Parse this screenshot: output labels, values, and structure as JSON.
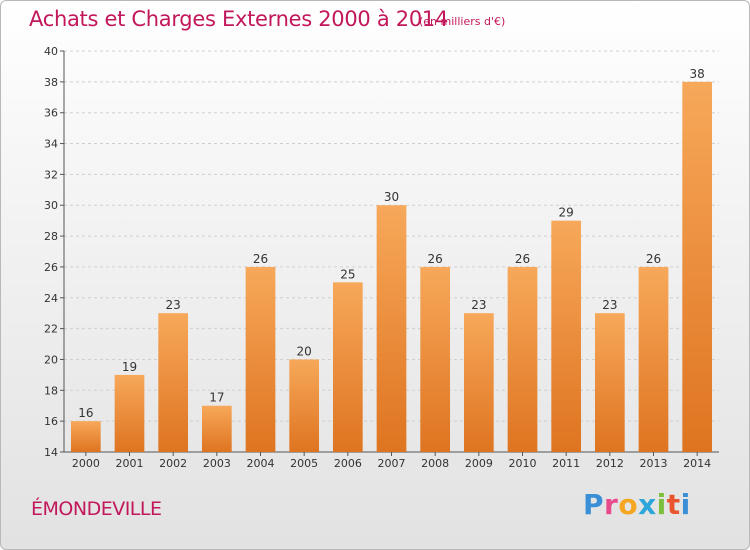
{
  "header": {
    "title": "Achats et Charges Externes 2000 à 2014",
    "subtitle": "(en milliers d'€)"
  },
  "footer": {
    "commune": "ÉMONDEVILLE",
    "logo_letters": [
      "P",
      "r",
      "o",
      "x",
      "i",
      "t",
      "i"
    ],
    "logo_colors": [
      "#3a8fd6",
      "#e84a8c",
      "#f5a623",
      "#2da6d9",
      "#7bbf3b",
      "#e8552f",
      "#3a8fd6"
    ]
  },
  "colors": {
    "bar_light": "#f7a85a",
    "bar_dark": "#de7420",
    "title": "#c2185b"
  },
  "chart_data": {
    "type": "bar",
    "categories": [
      "2000",
      "2001",
      "2002",
      "2003",
      "2004",
      "2005",
      "2006",
      "2007",
      "2008",
      "2009",
      "2010",
      "2011",
      "2012",
      "2013",
      "2014"
    ],
    "values": [
      16,
      19,
      23,
      17,
      26,
      20,
      25,
      30,
      26,
      23,
      26,
      29,
      23,
      26,
      38
    ],
    "title": "Achats et Charges Externes 2000 à 2014",
    "subtitle": "(en milliers d'€)",
    "xlabel": "",
    "ylabel": "",
    "ylim": [
      14,
      40
    ],
    "yticks": [
      14,
      16,
      18,
      20,
      22,
      24,
      26,
      28,
      30,
      32,
      34,
      36,
      38,
      40
    ],
    "grid": true,
    "data_labels": true
  }
}
